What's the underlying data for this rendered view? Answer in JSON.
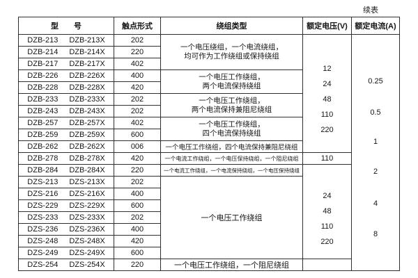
{
  "page": {
    "continued_label": "续表",
    "background_color": "#ffffff",
    "border_color": "#2e2e2e",
    "text_color": "#141414"
  },
  "table": {
    "headers": {
      "model": "型　　号",
      "contact": "触点形式",
      "winding": "绕组类型",
      "voltage": "额定电压(V)",
      "current": "额定电流(A)"
    },
    "rows": [
      {
        "a": "DZB-213",
        "b": "DZB-213X",
        "c": "202"
      },
      {
        "a": "DZB-214",
        "b": "DZB-214X",
        "c": "220"
      },
      {
        "a": "DZB-217",
        "b": "DZB-217X",
        "c": "402"
      },
      {
        "a": "DZB-226",
        "b": "DZB-226X",
        "c": "400"
      },
      {
        "a": "DZB-228",
        "b": "DZB-228X",
        "c": "420"
      },
      {
        "a": "DZB-233",
        "b": "DZB-233X",
        "c": "202"
      },
      {
        "a": "DZB-243",
        "b": "DZB-243X",
        "c": "202"
      },
      {
        "a": "DZB-257",
        "b": "DZB-257X",
        "c": "402"
      },
      {
        "a": "DZB-259",
        "b": "DZB-259X",
        "c": "600"
      },
      {
        "a": "DZB-262",
        "b": "DZB-262X",
        "c": "006"
      },
      {
        "a": "DZB-278",
        "b": "DZB-278X",
        "c": "420"
      },
      {
        "a": "DZB-284",
        "b": "DZB-284X",
        "c": "220"
      },
      {
        "a": "DZS-213",
        "b": "DZS-213X",
        "c": "202"
      },
      {
        "a": "DZS-216",
        "b": "DZS-216X",
        "c": "400"
      },
      {
        "a": "DZS-229",
        "b": "DZS-229X",
        "c": "600"
      },
      {
        "a": "DZS-233",
        "b": "DZS-233X",
        "c": "202"
      },
      {
        "a": "DZS-236",
        "b": "DZS-236X",
        "c": "400"
      },
      {
        "a": "DZS-248",
        "b": "DZS-248X",
        "c": "420"
      },
      {
        "a": "DZS-249",
        "b": "DZS-249X",
        "c": "600"
      },
      {
        "a": "DZS-254",
        "b": "DZS-254X",
        "c": "220"
      }
    ],
    "winding_groups": [
      {
        "lines": [
          "一个电压绕组，一个电流绕组，",
          "均可作为工作绕组或保持绕组"
        ]
      },
      {
        "lines": [
          "一个电压工作绕组，",
          "两个电流保持绕组"
        ]
      },
      {
        "lines": [
          "一个电压工作绕组，",
          "两个电流保持兼阻尼绕组"
        ]
      },
      {
        "lines": [
          "一个电压工作绕组，",
          "四个电流保持绕组"
        ]
      },
      {
        "lines": [
          "一个电压工作绕组，四个电流保持兼阻尼绕组"
        ]
      },
      {
        "lines": [
          "一个电流工作绕组，一个电压保持绕组，一个阻尼绕组"
        ]
      },
      {
        "lines": [
          "一个电流工作绕组，一个电流保持绕组，一个电压保持绕组"
        ]
      },
      {
        "lines": [
          "一个电压工作绕组"
        ]
      },
      {
        "lines": [
          "一个电压工作绕组，一个阻尼绕组"
        ]
      }
    ],
    "voltage_groups": [
      {
        "values": [
          "12",
          "24",
          "48",
          "110",
          "220"
        ]
      },
      {
        "values": [
          "110"
        ]
      },
      {
        "values": [
          "24",
          "48",
          "110",
          "220"
        ]
      },
      {
        "values": []
      }
    ],
    "current_values": [
      "0.25",
      "0.5",
      "1",
      "2",
      "4",
      "8"
    ]
  }
}
